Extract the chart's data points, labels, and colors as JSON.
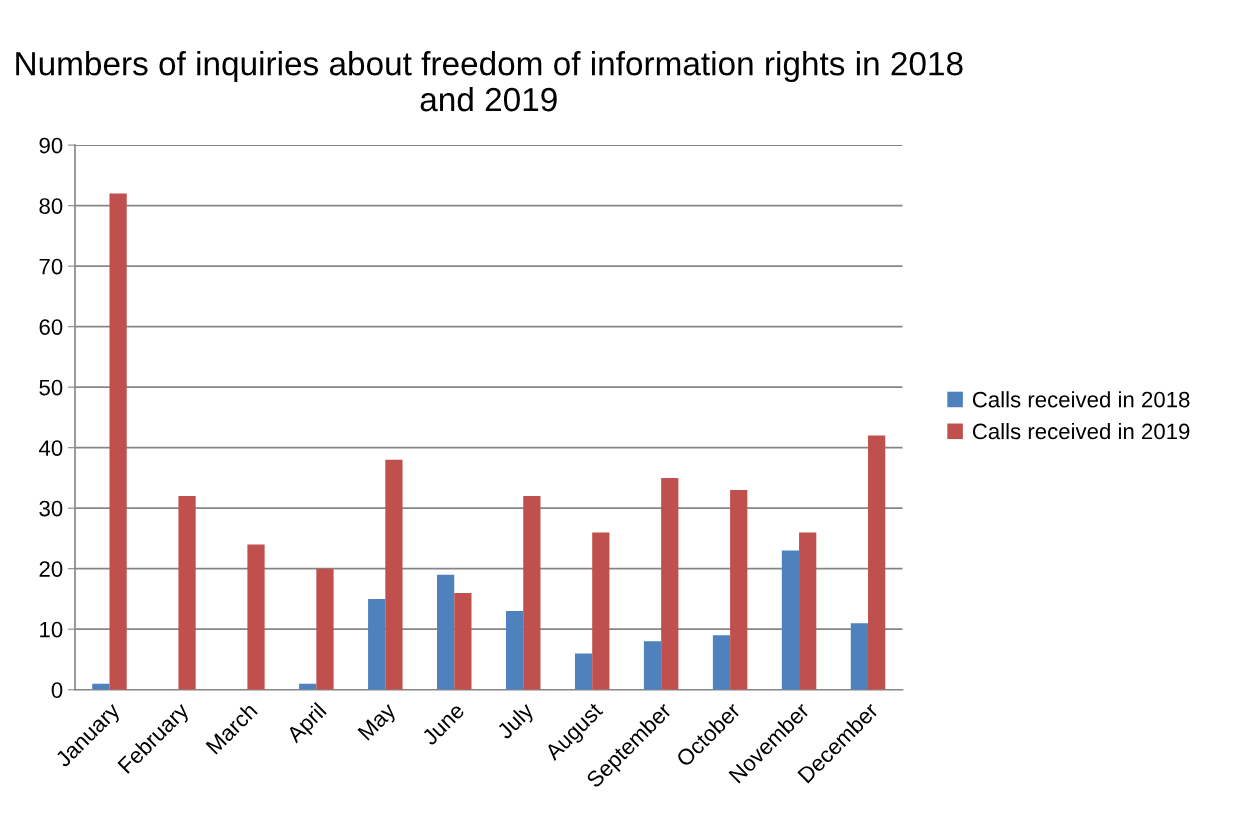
{
  "chart_data": {
    "type": "bar",
    "title": "Numbers of inquiries about freedom of information rights in 2018 and 2019",
    "categories": [
      "January",
      "February",
      "March",
      "April",
      "May",
      "June",
      "July",
      "August",
      "September",
      "October",
      "November",
      "December"
    ],
    "series": [
      {
        "name": "Calls received in 2018",
        "color": "#4f81bd",
        "values": [
          1,
          0,
          0,
          1,
          15,
          19,
          13,
          6,
          8,
          9,
          23,
          11
        ]
      },
      {
        "name": "Calls received in 2019",
        "color": "#c0504d",
        "values": [
          82,
          32,
          24,
          20,
          38,
          16,
          32,
          26,
          35,
          33,
          26,
          42
        ]
      }
    ],
    "ylim": [
      0,
      90
    ],
    "yticks": [
      0,
      10,
      20,
      30,
      40,
      50,
      60,
      70,
      80,
      90
    ],
    "grid": "y",
    "legend": "right"
  }
}
